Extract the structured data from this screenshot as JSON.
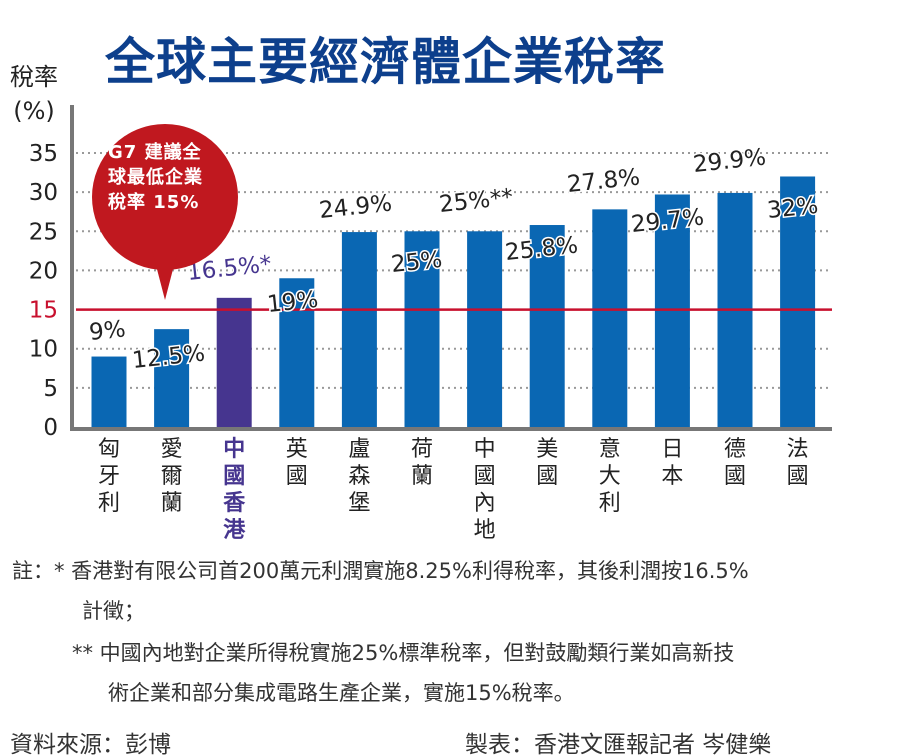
{
  "chart_data": {
    "type": "bar",
    "title": "全球主要經濟體企業稅率",
    "ylabel": "稅率 (%)",
    "ylabel_lines": [
      "稅率",
      "(%)"
    ],
    "ylim": [
      0,
      35
    ],
    "yticks": [
      0,
      5,
      10,
      15,
      20,
      25,
      30,
      35
    ],
    "grid": true,
    "categories": [
      "匈牙利",
      "愛爾蘭",
      "中國香港",
      "英國",
      "盧森堡",
      "荷蘭",
      "中國內地",
      "美國",
      "意大利",
      "日本",
      "德國",
      "法國"
    ],
    "values": [
      9,
      12.5,
      16.5,
      19,
      24.9,
      25,
      25,
      25.8,
      27.8,
      29.7,
      29.9,
      32
    ],
    "data_labels": [
      "9%",
      "12.5%",
      "16.5%*",
      "19%",
      "24.9%",
      "25%",
      "25%**",
      "25.8%",
      "27.8%",
      "29.7%",
      "29.9%",
      "32%"
    ],
    "highlight_index": 2,
    "reference_line": {
      "value": 15,
      "label": "15",
      "color": "#c8102e"
    },
    "annotation": {
      "lines": [
        "G7 建議全",
        "球最低企業",
        "稅率 15%"
      ]
    },
    "colors": {
      "bar": "#0a67b3",
      "highlight": "#46358f",
      "title": "#0d3f8c",
      "bubble": "#c0181f"
    }
  },
  "notes": {
    "n1_prefix": "註：* 香港對有限公司首200萬元利潤實施8.25%利得稅率，其後利潤按16.5%",
    "n1_cont": "計徵；",
    "n2_prefix": "** 中國內地對企業所得稅實施25%標準稅率，但對鼓勵類行業如高新技",
    "n2_cont": "術企業和部分集成電路生產企業，實施15%稅率。",
    "source": "資料來源：彭博",
    "credit": "製表：香港文匯報記者 岑健樂"
  }
}
